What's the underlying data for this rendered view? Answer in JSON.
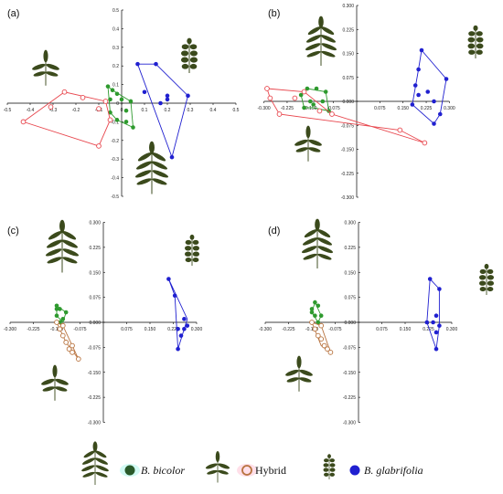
{
  "legend": {
    "bicolor_label": "B. bicolor",
    "hybrid_label": "Hybrid",
    "glabrifolia_label": "B. glabrifolia"
  },
  "colors": {
    "bicolor": "#2e9a2e",
    "hybrid": "#e8464d",
    "hybrid_cd": "#b8733f",
    "glabrifolia": "#2020d0",
    "leaf": "#3b4a1c"
  },
  "chart_data": [
    {
      "panel_label": "(a)",
      "type": "scatter",
      "xlim": [
        -0.5,
        0.5
      ],
      "ylim": [
        -0.5,
        0.5
      ],
      "xticks": [
        "-0.5",
        "-0.4",
        "-0.3",
        "-0.2",
        "-0.1",
        "0",
        "0.1",
        "0.2",
        "0.3",
        "0.4",
        "0.5"
      ],
      "yticks": [
        "0.5",
        "0.4",
        "0.3",
        "0.2",
        "0.1",
        "0",
        "-0.1",
        "-0.2",
        "-0.3",
        "-0.4",
        "-0.5"
      ],
      "xtick_values": [
        -0.5,
        -0.4,
        -0.3,
        -0.2,
        -0.1,
        0,
        0.1,
        0.2,
        0.3,
        0.4,
        0.5
      ],
      "ytick_values": [
        0.5,
        0.4,
        0.3,
        0.2,
        0.1,
        0,
        -0.1,
        -0.2,
        -0.3,
        -0.4,
        -0.5
      ],
      "series": [
        {
          "name": "B. bicolor",
          "color_key": "bicolor",
          "marker": "filled",
          "points": [
            [
              -0.06,
              0.09
            ],
            [
              -0.04,
              0.07
            ],
            [
              -0.02,
              0.05
            ],
            [
              -0.05,
              0.02
            ],
            [
              0.0,
              0.02
            ],
            [
              0.04,
              0.01
            ],
            [
              0.02,
              -0.04
            ],
            [
              -0.05,
              -0.05
            ],
            [
              -0.02,
              -0.09
            ],
            [
              0.05,
              -0.13
            ],
            [
              0.02,
              -0.1
            ]
          ],
          "hull": [
            [
              -0.06,
              0.09
            ],
            [
              -0.04,
              0.07
            ],
            [
              0.04,
              0.01
            ],
            [
              0.05,
              -0.13
            ],
            [
              -0.02,
              -0.09
            ],
            [
              -0.05,
              -0.05
            ]
          ]
        },
        {
          "name": "Hybrid",
          "color_key": "hybrid",
          "marker": "open",
          "points": [
            [
              -0.43,
              -0.1
            ],
            [
              -0.31,
              -0.02
            ],
            [
              -0.25,
              0.06
            ],
            [
              -0.17,
              0.03
            ],
            [
              -0.1,
              -0.03
            ],
            [
              -0.05,
              -0.09
            ],
            [
              -0.1,
              -0.23
            ],
            [
              -0.07,
              0.01
            ]
          ],
          "hull": [
            [
              -0.43,
              -0.1
            ],
            [
              -0.25,
              0.06
            ],
            [
              -0.07,
              0.01
            ],
            [
              -0.05,
              -0.09
            ],
            [
              -0.1,
              -0.23
            ]
          ]
        },
        {
          "name": "B. glabrifolia",
          "color_key": "glabrifolia",
          "marker": "filled",
          "points": [
            [
              0.07,
              0.21
            ],
            [
              0.15,
              0.21
            ],
            [
              0.29,
              0.04
            ],
            [
              0.22,
              -0.29
            ],
            [
              0.1,
              0.06
            ],
            [
              0.2,
              0.04
            ],
            [
              0.2,
              0.02
            ],
            [
              0.17,
              0.0
            ]
          ],
          "hull": [
            [
              0.07,
              0.21
            ],
            [
              0.15,
              0.21
            ],
            [
              0.29,
              0.04
            ],
            [
              0.22,
              -0.29
            ]
          ]
        }
      ]
    },
    {
      "panel_label": "(b)",
      "type": "scatter",
      "xlim": [
        -0.3,
        0.3
      ],
      "ylim": [
        -0.3,
        0.3
      ],
      "xticks": [
        "-0.300",
        "-0.225",
        "-0.150",
        "-0.075",
        "0.075",
        "0.150",
        "0.225",
        "0.300"
      ],
      "yticks": [
        "0.300",
        "0.225",
        "0.150",
        "0.075",
        "0.000",
        "-0.075",
        "-0.150",
        "-0.225",
        "-0.300"
      ],
      "xtick_values": [
        -0.3,
        -0.225,
        -0.15,
        -0.075,
        0.075,
        0.15,
        0.225,
        0.3
      ],
      "ytick_values": [
        0.3,
        0.225,
        0.15,
        0.075,
        0,
        -0.075,
        -0.15,
        -0.225,
        -0.3
      ],
      "series": [
        {
          "name": "B. bicolor",
          "color_key": "bicolor",
          "marker": "filled",
          "points": [
            [
              -0.18,
              0.02
            ],
            [
              -0.16,
              0.04
            ],
            [
              -0.13,
              0.04
            ],
            [
              -0.1,
              0.03
            ],
            [
              -0.14,
              -0.01
            ],
            [
              -0.12,
              -0.03
            ],
            [
              -0.09,
              -0.03
            ],
            [
              -0.17,
              -0.02
            ],
            [
              -0.11,
              0.0
            ],
            [
              -0.15,
              0.0
            ]
          ],
          "hull": [
            [
              -0.18,
              0.02
            ],
            [
              -0.16,
              0.04
            ],
            [
              -0.1,
              0.03
            ],
            [
              -0.09,
              -0.03
            ],
            [
              -0.14,
              -0.02
            ],
            [
              -0.17,
              -0.02
            ]
          ]
        },
        {
          "name": "Hybrid",
          "color_key": "hybrid",
          "marker": "open",
          "points": [
            [
              -0.29,
              0.04
            ],
            [
              -0.28,
              0.01
            ],
            [
              -0.25,
              -0.04
            ],
            [
              -0.17,
              0.03
            ],
            [
              -0.12,
              -0.03
            ],
            [
              -0.08,
              -0.04
            ],
            [
              0.14,
              -0.09
            ],
            [
              0.22,
              -0.13
            ],
            [
              -0.2,
              0.01
            ]
          ],
          "hull": [
            [
              -0.29,
              0.04
            ],
            [
              -0.17,
              0.03
            ],
            [
              -0.08,
              -0.04
            ],
            [
              0.22,
              -0.13
            ],
            [
              0.14,
              -0.09
            ],
            [
              -0.25,
              -0.04
            ],
            [
              -0.28,
              0.01
            ]
          ]
        },
        {
          "name": "B. glabrifolia",
          "color_key": "glabrifolia",
          "marker": "filled",
          "points": [
            [
              0.21,
              0.16
            ],
            [
              0.2,
              0.1
            ],
            [
              0.2,
              0.02
            ],
            [
              0.18,
              -0.01
            ],
            [
              0.19,
              0.05
            ],
            [
              0.23,
              0.03
            ],
            [
              0.29,
              0.07
            ],
            [
              0.25,
              -0.07
            ],
            [
              0.25,
              0.0
            ],
            [
              0.27,
              -0.04
            ]
          ],
          "hull": [
            [
              0.21,
              0.16
            ],
            [
              0.29,
              0.07
            ],
            [
              0.27,
              -0.04
            ],
            [
              0.25,
              -0.07
            ],
            [
              0.18,
              -0.01
            ],
            [
              0.2,
              0.1
            ]
          ]
        }
      ]
    },
    {
      "panel_label": "(c)",
      "type": "scatter",
      "xlim": [
        -0.3,
        0.3
      ],
      "ylim": [
        -0.3,
        0.3
      ],
      "xticks": [
        "-0.300",
        "-0.225",
        "-0.150",
        "-0.075",
        "0.075",
        "0.150",
        "0.225",
        "0.300"
      ],
      "yticks": [
        "0.300",
        "0.225",
        "0.150",
        "0.075",
        "0.000",
        "-0.075",
        "-0.150",
        "-0.225",
        "-0.300"
      ],
      "xtick_values": [
        -0.3,
        -0.225,
        -0.15,
        -0.075,
        0.075,
        0.15,
        0.225,
        0.3
      ],
      "ytick_values": [
        0.3,
        0.225,
        0.15,
        0.075,
        0,
        -0.075,
        -0.15,
        -0.225,
        -0.3
      ],
      "series": [
        {
          "name": "B. bicolor",
          "color_key": "bicolor",
          "marker": "filled",
          "points": [
            [
              -0.15,
              0.05
            ],
            [
              -0.14,
              0.04
            ],
            [
              -0.15,
              0.02
            ],
            [
              -0.14,
              0.0
            ],
            [
              -0.13,
              0.01
            ],
            [
              -0.15,
              0.04
            ],
            [
              -0.12,
              0.03
            ]
          ],
          "hull": [
            [
              -0.15,
              0.05
            ],
            [
              -0.12,
              0.03
            ],
            [
              -0.13,
              0.0
            ],
            [
              -0.15,
              0.02
            ]
          ]
        },
        {
          "name": "Hybrid",
          "color_key": "hybrid_cd",
          "marker": "open",
          "points": [
            [
              -0.15,
              0.0
            ],
            [
              -0.14,
              -0.02
            ],
            [
              -0.13,
              -0.04
            ],
            [
              -0.12,
              -0.06
            ],
            [
              -0.11,
              -0.08
            ],
            [
              -0.1,
              -0.09
            ],
            [
              -0.08,
              -0.11
            ],
            [
              -0.1,
              -0.07
            ],
            [
              -0.13,
              -0.01
            ]
          ],
          "hull": [
            [
              -0.15,
              0.0
            ],
            [
              -0.13,
              -0.01
            ],
            [
              -0.08,
              -0.11
            ],
            [
              -0.12,
              -0.06
            ]
          ]
        },
        {
          "name": "B. glabrifolia",
          "color_key": "glabrifolia",
          "marker": "filled",
          "points": [
            [
              0.21,
              0.13
            ],
            [
              0.23,
              0.08
            ],
            [
              0.26,
              0.01
            ],
            [
              0.27,
              -0.01
            ],
            [
              0.26,
              -0.02
            ],
            [
              0.25,
              -0.04
            ],
            [
              0.24,
              -0.02
            ],
            [
              0.24,
              -0.08
            ]
          ],
          "hull": [
            [
              0.21,
              0.13
            ],
            [
              0.27,
              0.01
            ],
            [
              0.24,
              -0.08
            ],
            [
              0.23,
              0.08
            ]
          ]
        }
      ]
    },
    {
      "panel_label": "(d)",
      "type": "scatter",
      "xlim": [
        -0.3,
        0.3
      ],
      "ylim": [
        -0.3,
        0.3
      ],
      "xticks": [
        "-0.300",
        "-0.225",
        "-0.150",
        "-0.075",
        "0.075",
        "0.150",
        "0.225",
        "0.300"
      ],
      "yticks": [
        "0.300",
        "0.225",
        "0.150",
        "0.075",
        "0.000",
        "-0.075",
        "-0.150",
        "-0.225",
        "-0.300"
      ],
      "xtick_values": [
        -0.3,
        -0.225,
        -0.15,
        -0.075,
        0.075,
        0.15,
        0.225,
        0.3
      ],
      "ytick_values": [
        0.3,
        0.225,
        0.15,
        0.075,
        0,
        -0.075,
        -0.15,
        -0.225,
        -0.3
      ],
      "series": [
        {
          "name": "B. bicolor",
          "color_key": "bicolor",
          "marker": "filled",
          "points": [
            [
              -0.14,
              0.06
            ],
            [
              -0.13,
              0.05
            ],
            [
              -0.15,
              0.03
            ],
            [
              -0.14,
              0.02
            ],
            [
              -0.13,
              0.0
            ],
            [
              -0.15,
              0.04
            ],
            [
              -0.12,
              0.02
            ]
          ],
          "hull": [
            [
              -0.14,
              0.06
            ],
            [
              -0.12,
              0.02
            ],
            [
              -0.13,
              0.0
            ],
            [
              -0.15,
              0.03
            ]
          ]
        },
        {
          "name": "Hybrid",
          "color_key": "hybrid_cd",
          "marker": "open",
          "points": [
            [
              -0.15,
              0.0
            ],
            [
              -0.14,
              -0.02
            ],
            [
              -0.13,
              -0.04
            ],
            [
              -0.12,
              -0.05
            ],
            [
              -0.11,
              -0.07
            ],
            [
              -0.1,
              -0.08
            ],
            [
              -0.09,
              -0.09
            ],
            [
              -0.12,
              -0.01
            ]
          ],
          "hull": [
            [
              -0.15,
              0.0
            ],
            [
              -0.12,
              -0.01
            ],
            [
              -0.09,
              -0.09
            ],
            [
              -0.12,
              -0.07
            ]
          ]
        },
        {
          "name": "B. glabrifolia",
          "color_key": "glabrifolia",
          "marker": "filled",
          "points": [
            [
              0.22,
              0.0
            ],
            [
              0.24,
              0.0
            ],
            [
              0.23,
              0.13
            ],
            [
              0.26,
              0.1
            ],
            [
              0.25,
              0.02
            ],
            [
              0.26,
              -0.01
            ],
            [
              0.25,
              -0.03
            ],
            [
              0.25,
              -0.08
            ]
          ],
          "hull": [
            [
              0.23,
              0.13
            ],
            [
              0.26,
              0.1
            ],
            [
              0.26,
              -0.01
            ],
            [
              0.25,
              -0.08
            ],
            [
              0.22,
              0.0
            ]
          ]
        }
      ]
    }
  ]
}
